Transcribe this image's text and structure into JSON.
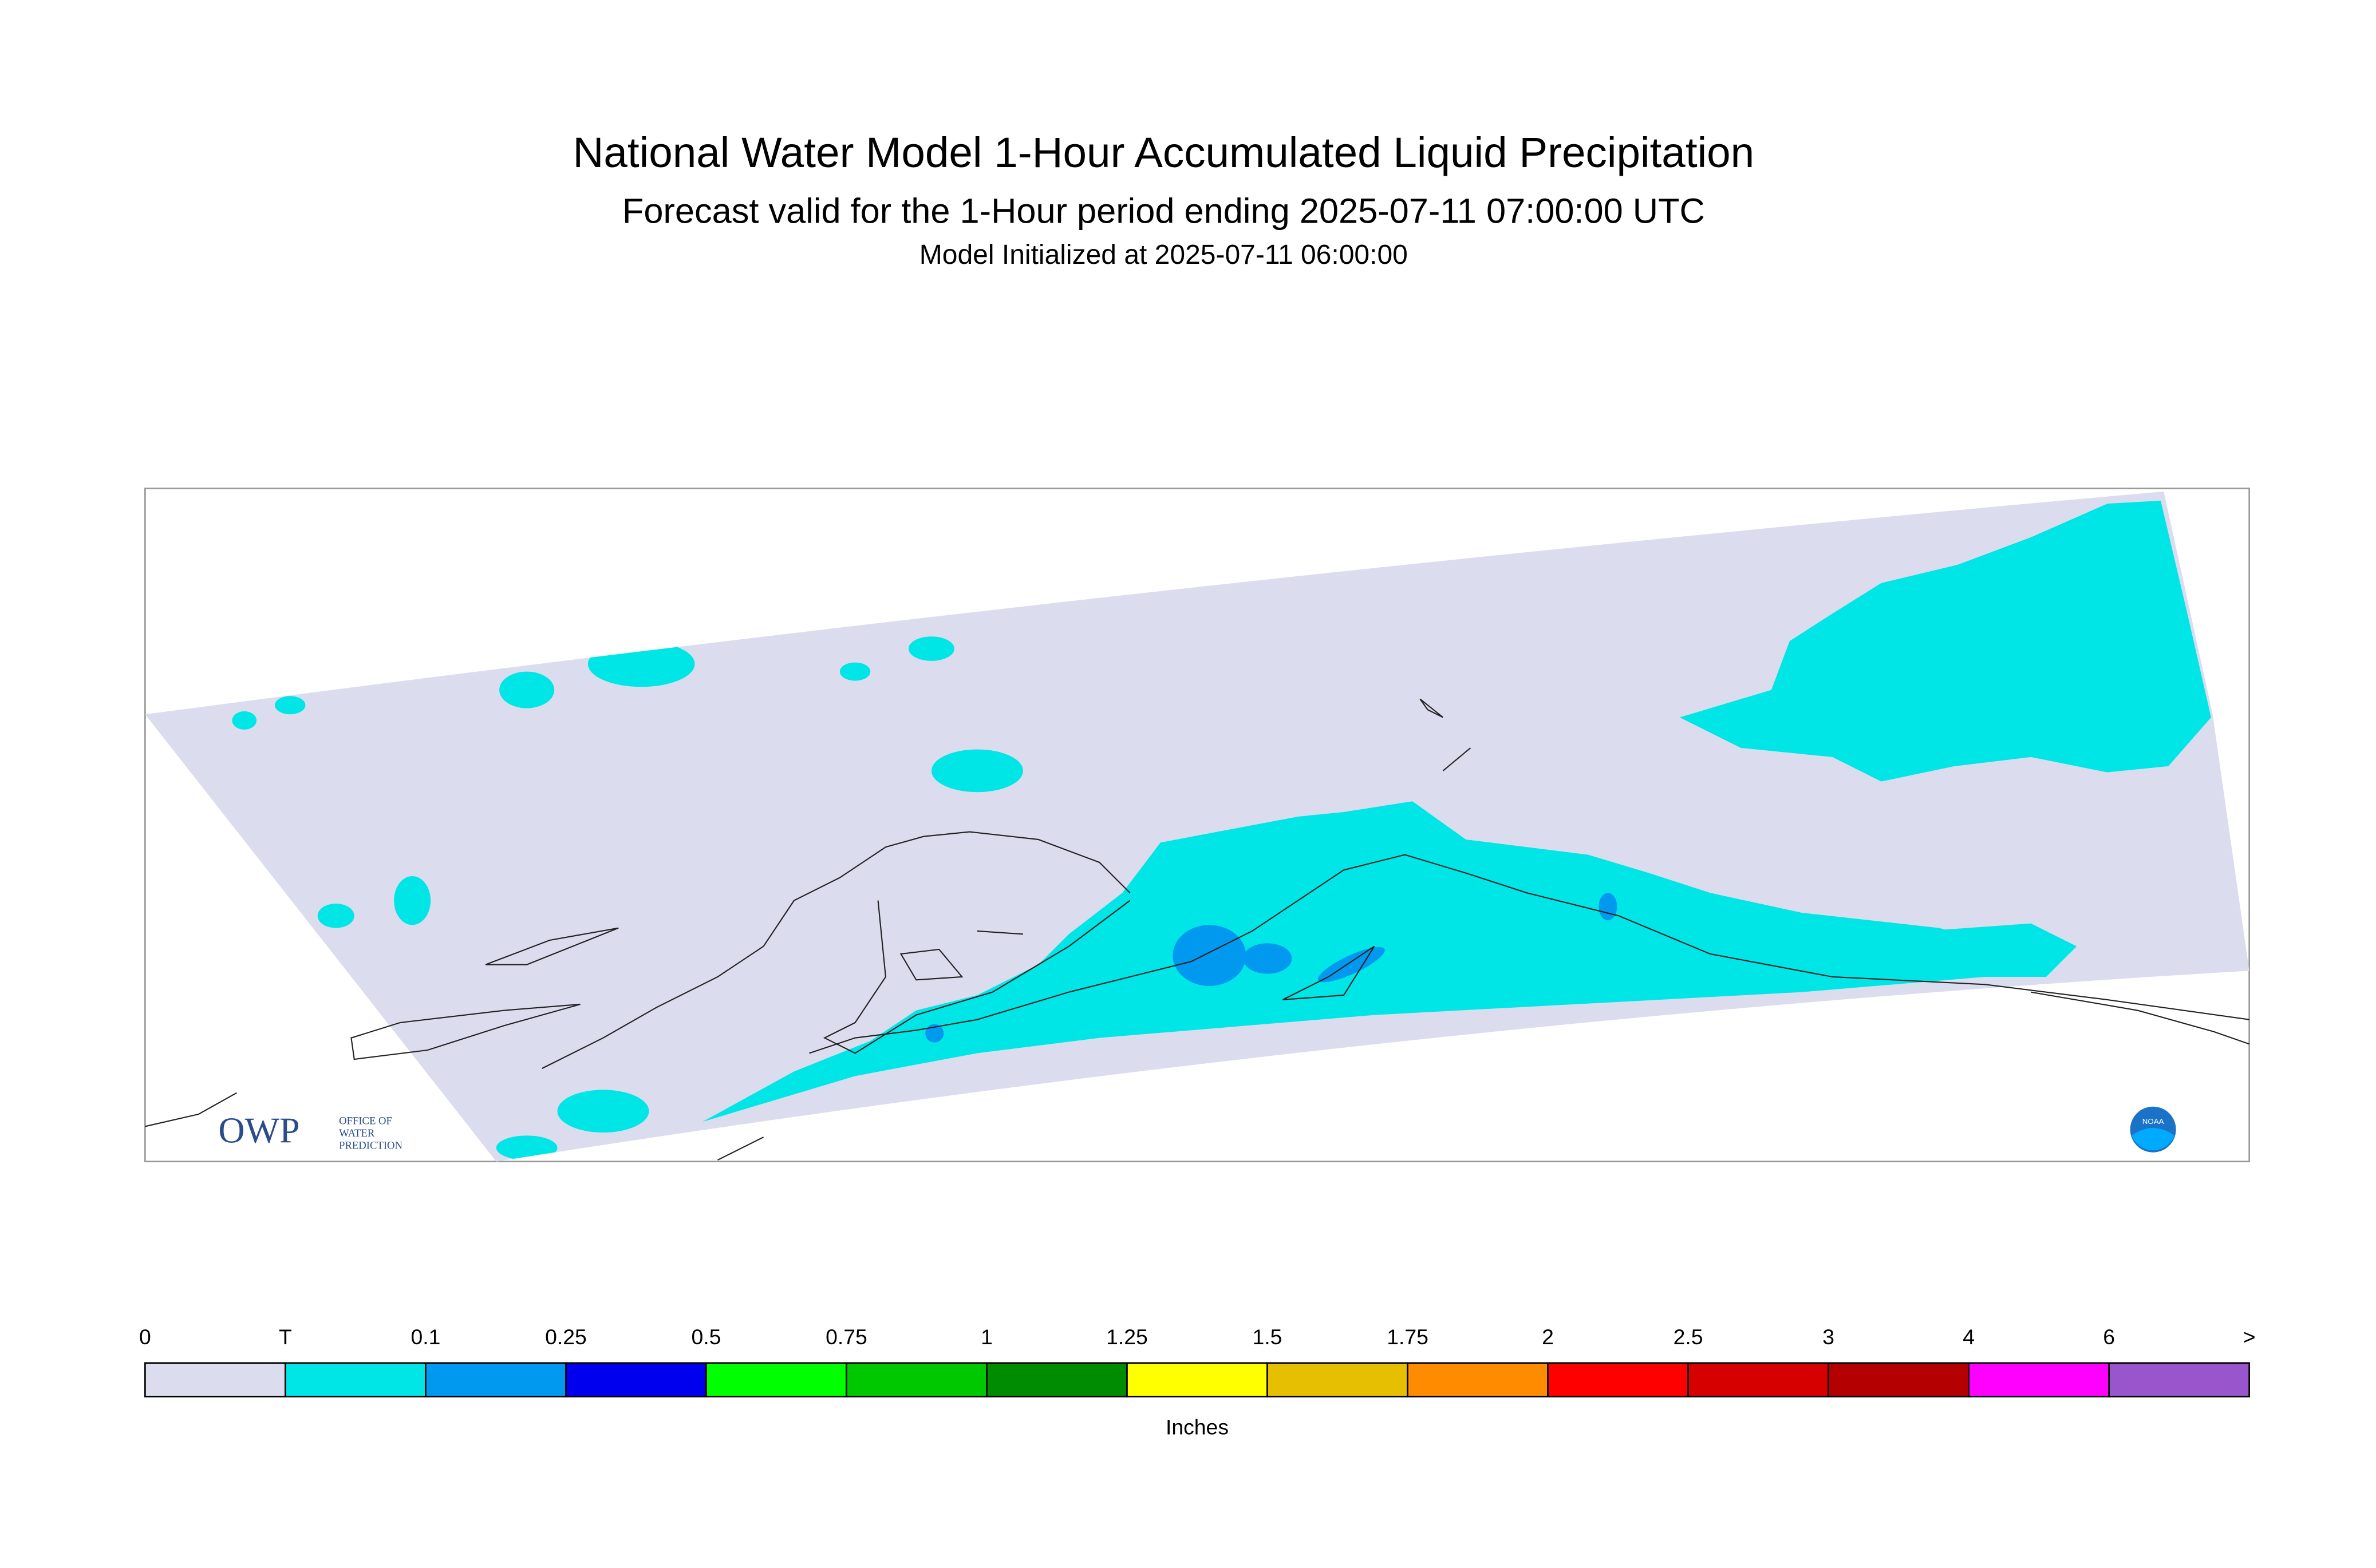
{
  "title": "National Water Model 1-Hour Accumulated Liquid Precipitation",
  "subtitle": "Forecast valid for the 1-Hour period ending 2025-07-11 07:00:00 UTC",
  "initialized": "Model Initialized at 2025-07-11 06:00:00",
  "legend": {
    "labels": [
      "0",
      "T",
      "0.1",
      "0.25",
      "0.5",
      "0.75",
      "1",
      "1.25",
      "1.5",
      "1.75",
      "2",
      "2.5",
      "3",
      "4",
      "6",
      ">"
    ],
    "colors": [
      "#dcdcef",
      "#00e6e6",
      "#0099ef",
      "#0000ee",
      "#00ff00",
      "#00c800",
      "#008c00",
      "#ffff00",
      "#e6c000",
      "#ff8c00",
      "#ff0000",
      "#d70000",
      "#b40000",
      "#ff00ff",
      "#9955cc"
    ],
    "unit": "Inches"
  },
  "logos": {
    "owp": "OWP",
    "owp_name": [
      "OFFICE OF",
      "WATER",
      "PREDICTION"
    ],
    "noaa": "NOAA"
  }
}
